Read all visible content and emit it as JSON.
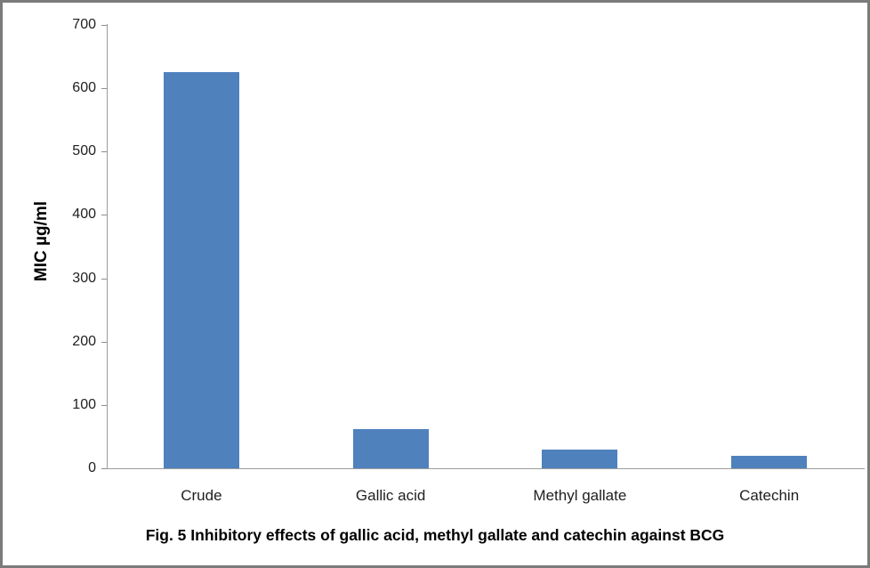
{
  "chart_data": {
    "type": "bar",
    "title": "Fig. 5 Inhibitory effects of gallic acid, methyl gallate and catechin against BCG",
    "categories": [
      "Crude",
      "Gallic acid",
      "Methyl gallate",
      "Catechin"
    ],
    "values": [
      625,
      62,
      30,
      20
    ],
    "xlabel": "",
    "ylabel": "MIC µg/ml",
    "ylim": [
      0,
      700
    ],
    "yticks": [
      0,
      100,
      200,
      300,
      400,
      500,
      600,
      700
    ],
    "grid": false,
    "legend_position": "none",
    "bar_color": "#4F81BD",
    "axis_color": "#9c9c9c",
    "tick_color": "#8e8e8e",
    "text_color": "#1f1f1f",
    "frame_border_color": "#7b7b7b",
    "background_color": "#ffffff"
  }
}
